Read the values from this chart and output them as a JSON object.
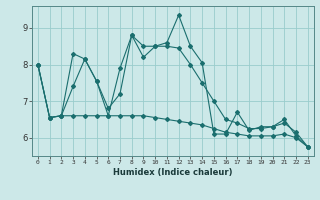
{
  "xlabel": "Humidex (Indice chaleur)",
  "background_color": "#cce8e8",
  "grid_color": "#99cccc",
  "line_color": "#1a6e6e",
  "x_values": [
    0,
    1,
    2,
    3,
    4,
    5,
    6,
    7,
    8,
    9,
    10,
    11,
    12,
    13,
    14,
    15,
    16,
    17,
    18,
    19,
    20,
    21,
    22,
    23
  ],
  "series1": [
    8.0,
    6.55,
    6.6,
    8.3,
    8.15,
    7.55,
    6.6,
    7.9,
    8.8,
    8.2,
    8.5,
    8.6,
    9.35,
    8.5,
    8.05,
    6.1,
    6.1,
    6.7,
    6.2,
    6.3,
    6.3,
    6.5,
    6.05,
    5.75
  ],
  "series2": [
    8.0,
    6.55,
    6.6,
    6.6,
    6.6,
    6.6,
    6.6,
    6.6,
    6.6,
    6.6,
    6.55,
    6.5,
    6.45,
    6.4,
    6.35,
    6.25,
    6.15,
    6.1,
    6.05,
    6.05,
    6.05,
    6.1,
    6.0,
    5.75
  ],
  "series3": [
    8.0,
    6.55,
    6.6,
    7.4,
    8.15,
    7.55,
    6.8,
    7.2,
    8.8,
    8.5,
    8.5,
    8.5,
    8.45,
    8.0,
    7.5,
    7.0,
    6.5,
    6.4,
    6.25,
    6.25,
    6.3,
    6.4,
    6.15,
    5.75
  ],
  "ylim": [
    5.5,
    9.6
  ],
  "yticks": [
    6,
    7,
    8,
    9
  ],
  "xlim": [
    -0.5,
    23.5
  ]
}
